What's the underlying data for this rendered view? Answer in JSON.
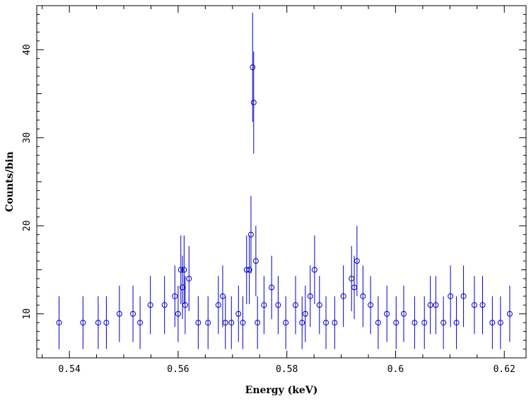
{
  "chart_data": {
    "type": "scatter",
    "xlabel": "Energy (keV)",
    "ylabel": "Counts/bin",
    "xlim": [
      0.534,
      0.624
    ],
    "ylim": [
      5.0,
      45.0
    ],
    "x_ticks": [
      "0.54",
      "0.56",
      "0.58",
      "0.6",
      "0.62"
    ],
    "x_tick_values": [
      0.54,
      0.56,
      0.58,
      0.6,
      0.62
    ],
    "y_ticks": [
      "10",
      "20",
      "30",
      "40"
    ],
    "y_tick_values": [
      10,
      20,
      30,
      40
    ],
    "marker_color": "#0000cc",
    "grid": false,
    "series": [
      {
        "x": [
          0.5381,
          0.5425,
          0.5453,
          0.5468,
          0.5492,
          0.5517,
          0.553,
          0.5549,
          0.5575,
          0.5594,
          0.56,
          0.5605,
          0.5608,
          0.5611,
          0.5613,
          0.562,
          0.5637,
          0.5655,
          0.5674,
          0.5682,
          0.5687,
          0.5698,
          0.5711,
          0.5719,
          0.5726,
          0.5731,
          0.5734,
          0.5737,
          0.5739,
          0.5743,
          0.5746,
          0.5758,
          0.5772,
          0.5784,
          0.5798,
          0.5816,
          0.5828,
          0.5834,
          0.5843,
          0.5851,
          0.586,
          0.5872,
          0.5888,
          0.5904,
          0.5919,
          0.5924,
          0.5929,
          0.594,
          0.5954,
          0.5968,
          0.5984,
          0.6001,
          0.6015,
          0.6035,
          0.6053,
          0.6064,
          0.6074,
          0.6088,
          0.6101,
          0.6112,
          0.6125,
          0.6145,
          0.616,
          0.6178,
          0.6193,
          0.621
        ],
        "y": [
          9,
          9,
          9,
          9,
          10,
          10,
          9,
          11,
          11,
          12,
          10,
          15,
          13,
          15,
          11,
          14,
          9,
          9,
          11,
          12,
          9,
          9,
          10,
          9,
          15,
          15,
          19,
          38,
          34,
          16,
          9,
          11,
          13,
          11,
          9,
          11,
          9,
          10,
          12,
          15,
          11,
          9,
          9,
          12,
          14,
          13,
          16,
          12,
          11,
          9,
          10,
          9,
          10,
          9,
          9,
          11,
          11,
          9,
          12,
          9,
          12,
          11,
          11,
          9,
          9,
          10
        ],
        "y_err": [
          3.0,
          3.0,
          3.0,
          3.0,
          3.2,
          3.2,
          3.0,
          3.3,
          3.3,
          3.5,
          3.2,
          3.9,
          3.6,
          3.9,
          3.3,
          3.7,
          3.0,
          3.0,
          3.3,
          3.5,
          3.0,
          3.0,
          3.2,
          3.0,
          3.9,
          3.9,
          4.4,
          6.2,
          5.8,
          4.0,
          3.0,
          3.3,
          3.6,
          3.3,
          3.0,
          3.3,
          3.0,
          3.2,
          3.5,
          3.9,
          3.3,
          3.0,
          3.0,
          3.5,
          3.7,
          3.6,
          4.0,
          3.5,
          3.3,
          3.0,
          3.2,
          3.0,
          3.2,
          3.0,
          3.0,
          3.3,
          3.3,
          3.0,
          3.5,
          3.0,
          3.5,
          3.3,
          3.3,
          3.0,
          3.0,
          3.2
        ]
      }
    ]
  }
}
